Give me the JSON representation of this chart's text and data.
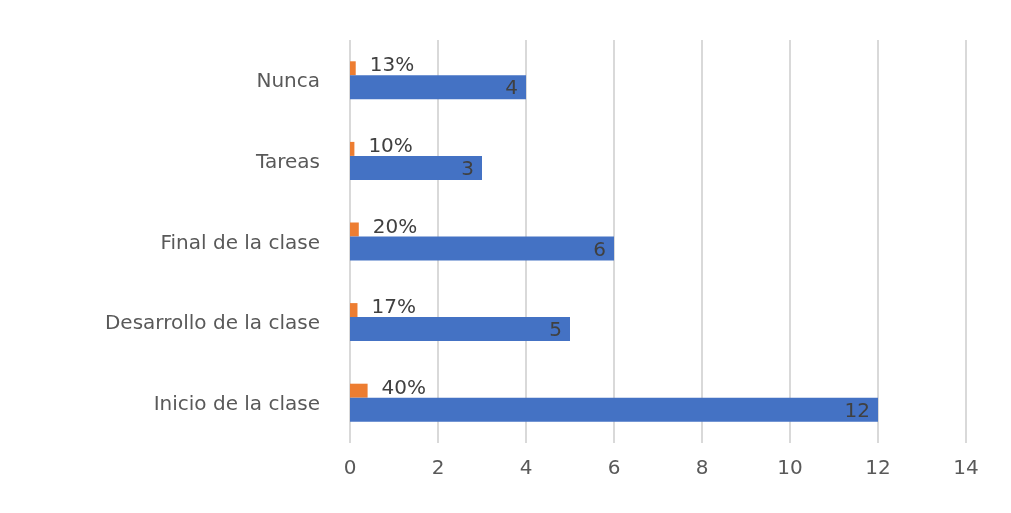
{
  "chart_data": {
    "type": "bar",
    "orientation": "horizontal",
    "categories": [
      "Nunca",
      "Tareas",
      "Final de la clase",
      "Desarrollo de la clase",
      "Inicio de la clase"
    ],
    "series": [
      {
        "color": "#ed7d31",
        "values": [
          0.13,
          0.1,
          0.2,
          0.17,
          0.4
        ],
        "value_labels": [
          "13%",
          "10%",
          "20%",
          "17%",
          "40%"
        ]
      },
      {
        "color": "#4472c4",
        "values": [
          4,
          3,
          6,
          5,
          12
        ],
        "value_labels": [
          "4",
          "3",
          "6",
          "5",
          "12"
        ]
      }
    ],
    "xlim": [
      0,
      14
    ],
    "xticks": [
      0,
      2,
      4,
      6,
      8,
      10,
      12,
      14
    ],
    "grid": "x"
  }
}
